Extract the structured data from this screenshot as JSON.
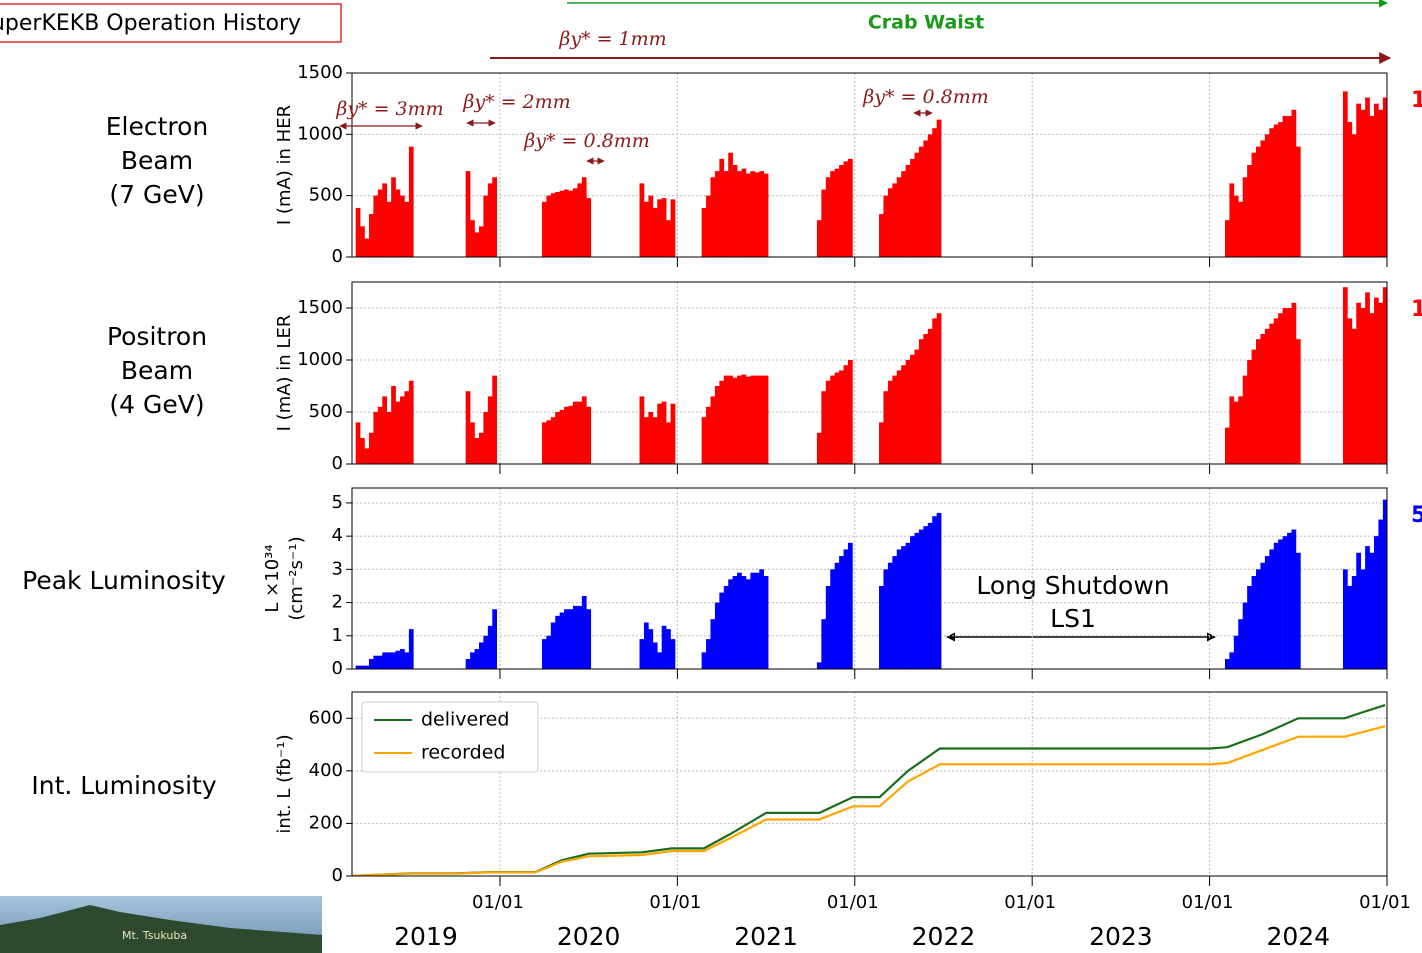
{
  "header": {
    "title": "SuperKEKB Operation History",
    "logo": "Mt. Tsukuba"
  },
  "annotations": {
    "crab_waist": "Crab Waist",
    "beta_1mm": "βy* = 1mm",
    "long_shutdown": [
      "Long Shutdown",
      "LS1"
    ]
  },
  "chart_data": [
    {
      "type": "bar",
      "panel_label": [
        "Electron",
        "Beam",
        "(7 GeV)"
      ],
      "ylabel": [
        "I (mA) in HER"
      ],
      "edge_label": "1",
      "color": "#ff0000",
      "grid": true,
      "annotations": [
        "βy* = 3mm",
        "βy* = 2mm",
        "βy* = 0.8mm",
        "βy* = 0.8mm"
      ],
      "xlim": [
        2019.166,
        2025.0
      ],
      "xticks": [
        {
          "value": 2020,
          "label": "01/01"
        },
        {
          "value": 2021,
          "label": "01/01"
        },
        {
          "value": 2022,
          "label": "01/01"
        },
        {
          "value": 2023,
          "label": "01/01"
        },
        {
          "value": 2024,
          "label": "01/01"
        },
        {
          "value": 2025,
          "label": "01/01"
        }
      ],
      "ylim": [
        0,
        1500
      ],
      "yticks": [
        0,
        500,
        1000,
        1500
      ],
      "x": [
        2019.2,
        2019.225,
        2019.25,
        2019.275,
        2019.3,
        2019.325,
        2019.35,
        2019.375,
        2019.4,
        2019.425,
        2019.45,
        2019.475,
        2019.5,
        2019.82,
        2019.845,
        2019.87,
        2019.895,
        2019.92,
        2019.945,
        2019.97,
        2020.25,
        2020.275,
        2020.3,
        2020.325,
        2020.35,
        2020.375,
        2020.4,
        2020.425,
        2020.45,
        2020.475,
        2020.5,
        2020.8,
        2020.825,
        2020.85,
        2020.875,
        2020.9,
        2020.925,
        2020.95,
        2020.975,
        2021.15,
        2021.175,
        2021.2,
        2021.225,
        2021.25,
        2021.275,
        2021.3,
        2021.325,
        2021.35,
        2021.375,
        2021.4,
        2021.425,
        2021.45,
        2021.475,
        2021.5,
        2021.8,
        2021.825,
        2021.85,
        2021.875,
        2021.9,
        2021.925,
        2021.95,
        2021.975,
        2022.15,
        2022.175,
        2022.2,
        2022.225,
        2022.25,
        2022.275,
        2022.3,
        2022.325,
        2022.35,
        2022.375,
        2022.4,
        2022.425,
        2022.45,
        2022.475,
        2024.1,
        2024.125,
        2024.15,
        2024.175,
        2024.2,
        2024.225,
        2024.25,
        2024.275,
        2024.3,
        2024.325,
        2024.35,
        2024.375,
        2024.4,
        2024.425,
        2024.45,
        2024.475,
        2024.5,
        2024.765,
        2024.79,
        2024.815,
        2024.84,
        2024.865,
        2024.89,
        2024.915,
        2024.94,
        2024.965,
        2024.99
      ],
      "values": [
        400,
        250,
        150,
        350,
        500,
        550,
        600,
        450,
        650,
        550,
        500,
        450,
        900,
        700,
        300,
        200,
        250,
        500,
        600,
        650,
        450,
        500,
        520,
        530,
        540,
        550,
        540,
        560,
        600,
        650,
        480,
        600,
        450,
        500,
        400,
        470,
        480,
        300,
        470,
        400,
        500,
        650,
        700,
        800,
        700,
        850,
        750,
        700,
        720,
        680,
        700,
        690,
        700,
        680,
        300,
        550,
        650,
        700,
        720,
        750,
        780,
        800,
        350,
        500,
        560,
        600,
        650,
        700,
        750,
        800,
        850,
        900,
        950,
        1000,
        1050,
        1120,
        300,
        600,
        500,
        450,
        650,
        750,
        850,
        900,
        950,
        1000,
        1050,
        1080,
        1100,
        1150,
        1150,
        1200,
        900,
        1350,
        1100,
        1000,
        1250,
        1200,
        1300,
        1150,
        1250,
        1200,
        1300
      ]
    },
    {
      "type": "bar",
      "panel_label": [
        "Positron",
        "Beam",
        "(4 GeV)"
      ],
      "ylabel": [
        "I (mA) in LER"
      ],
      "edge_label": "1",
      "color": "#ff0000",
      "grid": true,
      "xlim": [
        2019.166,
        2025.0
      ],
      "xticks": [
        {
          "value": 2020,
          "label": "01/01"
        },
        {
          "value": 2021,
          "label": "01/01"
        },
        {
          "value": 2022,
          "label": "01/01"
        },
        {
          "value": 2023,
          "label": "01/01"
        },
        {
          "value": 2024,
          "label": "01/01"
        },
        {
          "value": 2025,
          "label": "01/01"
        }
      ],
      "ylim": [
        0,
        1750
      ],
      "yticks": [
        0,
        500,
        1000,
        1500
      ],
      "x": [
        2019.2,
        2019.225,
        2019.25,
        2019.275,
        2019.3,
        2019.325,
        2019.35,
        2019.375,
        2019.4,
        2019.425,
        2019.45,
        2019.475,
        2019.5,
        2019.82,
        2019.845,
        2019.87,
        2019.895,
        2019.92,
        2019.945,
        2019.97,
        2020.25,
        2020.275,
        2020.3,
        2020.325,
        2020.35,
        2020.375,
        2020.4,
        2020.425,
        2020.45,
        2020.475,
        2020.5,
        2020.8,
        2020.825,
        2020.85,
        2020.875,
        2020.9,
        2020.925,
        2020.95,
        2020.975,
        2021.15,
        2021.175,
        2021.2,
        2021.225,
        2021.25,
        2021.275,
        2021.3,
        2021.325,
        2021.35,
        2021.375,
        2021.4,
        2021.425,
        2021.45,
        2021.475,
        2021.5,
        2021.8,
        2021.825,
        2021.85,
        2021.875,
        2021.9,
        2021.925,
        2021.95,
        2021.975,
        2022.15,
        2022.175,
        2022.2,
        2022.225,
        2022.25,
        2022.275,
        2022.3,
        2022.325,
        2022.35,
        2022.375,
        2022.4,
        2022.425,
        2022.45,
        2022.475,
        2024.1,
        2024.125,
        2024.15,
        2024.175,
        2024.2,
        2024.225,
        2024.25,
        2024.275,
        2024.3,
        2024.325,
        2024.35,
        2024.375,
        2024.4,
        2024.425,
        2024.45,
        2024.475,
        2024.5,
        2024.765,
        2024.79,
        2024.815,
        2024.84,
        2024.865,
        2024.89,
        2024.915,
        2024.94,
        2024.965,
        2024.99
      ],
      "values": [
        400,
        250,
        150,
        300,
        500,
        550,
        650,
        500,
        750,
        600,
        650,
        700,
        800,
        700,
        400,
        250,
        300,
        500,
        650,
        850,
        400,
        420,
        450,
        500,
        520,
        550,
        560,
        600,
        600,
        650,
        550,
        650,
        450,
        500,
        450,
        580,
        600,
        400,
        580,
        450,
        550,
        650,
        750,
        800,
        850,
        850,
        830,
        850,
        860,
        840,
        850,
        850,
        850,
        850,
        300,
        700,
        800,
        850,
        880,
        900,
        950,
        1000,
        400,
        700,
        800,
        850,
        900,
        950,
        1000,
        1050,
        1100,
        1200,
        1250,
        1300,
        1400,
        1450,
        350,
        650,
        600,
        650,
        850,
        1000,
        1100,
        1200,
        1250,
        1300,
        1350,
        1400,
        1450,
        1500,
        1500,
        1550,
        1200,
        1700,
        1400,
        1300,
        1550,
        1500,
        1650,
        1450,
        1600,
        1550,
        1700
      ]
    },
    {
      "type": "bar",
      "panel_label": [
        "Peak Luminosity"
      ],
      "ylabel": [
        "L ×10³⁴",
        "(cm⁻²s⁻¹)"
      ],
      "edge_label": "5",
      "color": "#0000ff",
      "grid": true,
      "xlim": [
        2019.166,
        2025.0
      ],
      "xticks": [
        {
          "value": 2020,
          "label": "01/01"
        },
        {
          "value": 2021,
          "label": "01/01"
        },
        {
          "value": 2022,
          "label": "01/01"
        },
        {
          "value": 2023,
          "label": "01/01"
        },
        {
          "value": 2024,
          "label": "01/01"
        },
        {
          "value": 2025,
          "label": "01/01"
        }
      ],
      "ylim": [
        0,
        5.45
      ],
      "yticks": [
        0,
        1,
        2,
        3,
        4,
        5
      ],
      "x": [
        2019.2,
        2019.225,
        2019.25,
        2019.275,
        2019.3,
        2019.325,
        2019.35,
        2019.375,
        2019.4,
        2019.425,
        2019.45,
        2019.475,
        2019.5,
        2019.82,
        2019.845,
        2019.87,
        2019.895,
        2019.92,
        2019.945,
        2019.97,
        2020.25,
        2020.275,
        2020.3,
        2020.325,
        2020.35,
        2020.375,
        2020.4,
        2020.425,
        2020.45,
        2020.475,
        2020.5,
        2020.8,
        2020.825,
        2020.85,
        2020.875,
        2020.9,
        2020.925,
        2020.95,
        2020.975,
        2021.15,
        2021.175,
        2021.2,
        2021.225,
        2021.25,
        2021.275,
        2021.3,
        2021.325,
        2021.35,
        2021.375,
        2021.4,
        2021.425,
        2021.45,
        2021.475,
        2021.5,
        2021.8,
        2021.825,
        2021.85,
        2021.875,
        2021.9,
        2021.925,
        2021.95,
        2021.975,
        2022.15,
        2022.175,
        2022.2,
        2022.225,
        2022.25,
        2022.275,
        2022.3,
        2022.325,
        2022.35,
        2022.375,
        2022.4,
        2022.425,
        2022.45,
        2022.475,
        2024.1,
        2024.125,
        2024.15,
        2024.175,
        2024.2,
        2024.225,
        2024.25,
        2024.275,
        2024.3,
        2024.325,
        2024.35,
        2024.375,
        2024.4,
        2024.425,
        2024.45,
        2024.475,
        2024.5,
        2024.765,
        2024.79,
        2024.815,
        2024.84,
        2024.865,
        2024.89,
        2024.915,
        2024.94,
        2024.965,
        2024.99
      ],
      "values": [
        0.1,
        0.1,
        0.1,
        0.3,
        0.4,
        0.4,
        0.5,
        0.5,
        0.5,
        0.55,
        0.6,
        0.5,
        1.2,
        0.3,
        0.5,
        0.6,
        0.8,
        1.0,
        1.3,
        1.8,
        0.9,
        1.0,
        1.4,
        1.6,
        1.7,
        1.8,
        1.8,
        1.9,
        1.9,
        2.2,
        1.8,
        0.9,
        1.4,
        1.2,
        0.8,
        0.5,
        1.3,
        1.2,
        0.9,
        0.5,
        0.9,
        1.5,
        2.0,
        2.3,
        2.5,
        2.7,
        2.8,
        2.9,
        2.8,
        2.7,
        2.9,
        2.9,
        3.0,
        2.8,
        0.2,
        1.5,
        2.5,
        3.0,
        3.2,
        3.4,
        3.6,
        3.8,
        2.5,
        3.0,
        3.2,
        3.4,
        3.6,
        3.7,
        3.8,
        4.0,
        4.1,
        4.2,
        4.3,
        4.4,
        4.6,
        4.7,
        0.3,
        0.5,
        1.0,
        1.5,
        2.0,
        2.5,
        2.8,
        3.0,
        3.2,
        3.4,
        3.6,
        3.8,
        3.9,
        4.0,
        4.1,
        4.2,
        3.5,
        3.0,
        2.5,
        2.8,
        3.5,
        3.0,
        3.7,
        3.5,
        4.0,
        4.5,
        5.1
      ]
    },
    {
      "type": "line",
      "panel_label": [
        "Int. Luminosity"
      ],
      "ylabel": [
        "int. L (fb⁻¹)"
      ],
      "grid": true,
      "legend": "upper left",
      "xlim": [
        2019.166,
        2025.0
      ],
      "xticks": [
        {
          "value": 2020,
          "label": "01/01"
        },
        {
          "value": 2021,
          "label": "01/01"
        },
        {
          "value": 2022,
          "label": "01/01"
        },
        {
          "value": 2023,
          "label": "01/01"
        },
        {
          "value": 2024,
          "label": "01/01"
        },
        {
          "value": 2025,
          "label": "01/01"
        }
      ],
      "x_group_labels": [
        "2019",
        "2020",
        "2021",
        "2022",
        "2023",
        "2024"
      ],
      "ylim": [
        0,
        700
      ],
      "yticks": [
        0,
        200,
        400,
        600
      ],
      "x": [
        2019.17,
        2019.25,
        2019.5,
        2019.75,
        2019.95,
        2020.2,
        2020.25,
        2020.35,
        2020.5,
        2020.8,
        2020.97,
        2021.15,
        2021.3,
        2021.5,
        2021.8,
        2021.99,
        2022.14,
        2022.3,
        2022.48,
        2023.0,
        2023.5,
        2024.0,
        2024.1,
        2024.3,
        2024.5,
        2024.76,
        2024.85,
        2024.99
      ],
      "series": [
        {
          "name": "delivered",
          "color": "#1a6e1a",
          "values": [
            0,
            3,
            10,
            10,
            15,
            15,
            30,
            60,
            85,
            90,
            105,
            105,
            160,
            240,
            240,
            300,
            300,
            400,
            485,
            485,
            485,
            485,
            490,
            540,
            600,
            600,
            620,
            650
          ]
        },
        {
          "name": "recorded",
          "color": "#ffa500",
          "values": [
            0,
            3,
            9,
            9,
            14,
            14,
            27,
            55,
            75,
            80,
            95,
            95,
            145,
            215,
            215,
            265,
            265,
            360,
            425,
            425,
            425,
            425,
            430,
            480,
            530,
            530,
            545,
            570
          ]
        }
      ]
    }
  ]
}
